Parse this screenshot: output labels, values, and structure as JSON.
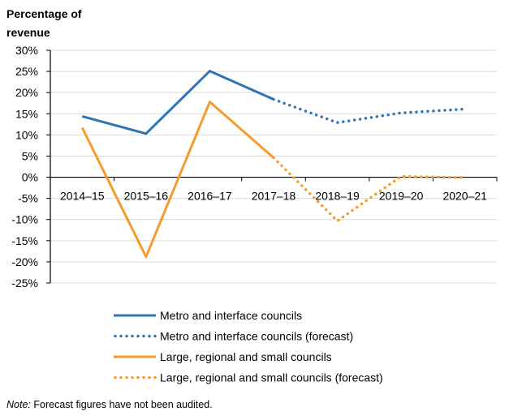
{
  "chart_data": {
    "type": "line",
    "title": "",
    "ylabel": "Percentage of revenue",
    "ylabel_lines": [
      "Percentage of",
      "revenue"
    ],
    "xlabel": "",
    "categories": [
      "2014–15",
      "2015–16",
      "2016–17",
      "2017–18",
      "2018–19",
      "2019–20",
      "2020–21"
    ],
    "ylim": [
      -25,
      30
    ],
    "yticks": [
      30,
      25,
      20,
      15,
      10,
      5,
      0,
      -5,
      -10,
      -15,
      -20,
      -25
    ],
    "ytick_labels": [
      "30%",
      "25%",
      "20%",
      "15%",
      "10%",
      "5%",
      "0%",
      "-5%",
      "-10%",
      "-15%",
      "-20%",
      "-25%"
    ],
    "grid": true,
    "legend_position": "bottom",
    "series": [
      {
        "name": "Metro and interface councils",
        "color": "#2E75B6",
        "style": "solid",
        "values": [
          14.4,
          10.3,
          25.1,
          18.4,
          null,
          null,
          null
        ]
      },
      {
        "name": "Metro and interface councils (forecast)",
        "color": "#2E75B6",
        "style": "dotted",
        "values": [
          null,
          null,
          null,
          18.4,
          12.9,
          15.2,
          16.1
        ]
      },
      {
        "name": "Large, regional and small councils",
        "color": "#F79A2E",
        "style": "solid",
        "values": [
          11.7,
          -18.8,
          17.8,
          4.6,
          null,
          null,
          null
        ]
      },
      {
        "name": "Large, regional and small councils (forecast)",
        "color": "#F79A2E",
        "style": "dotted",
        "values": [
          null,
          null,
          null,
          4.6,
          -10.3,
          0.2,
          -0.1
        ]
      }
    ]
  },
  "note": {
    "prefix": "Note:",
    "text": " Forecast figures have not been audited."
  }
}
